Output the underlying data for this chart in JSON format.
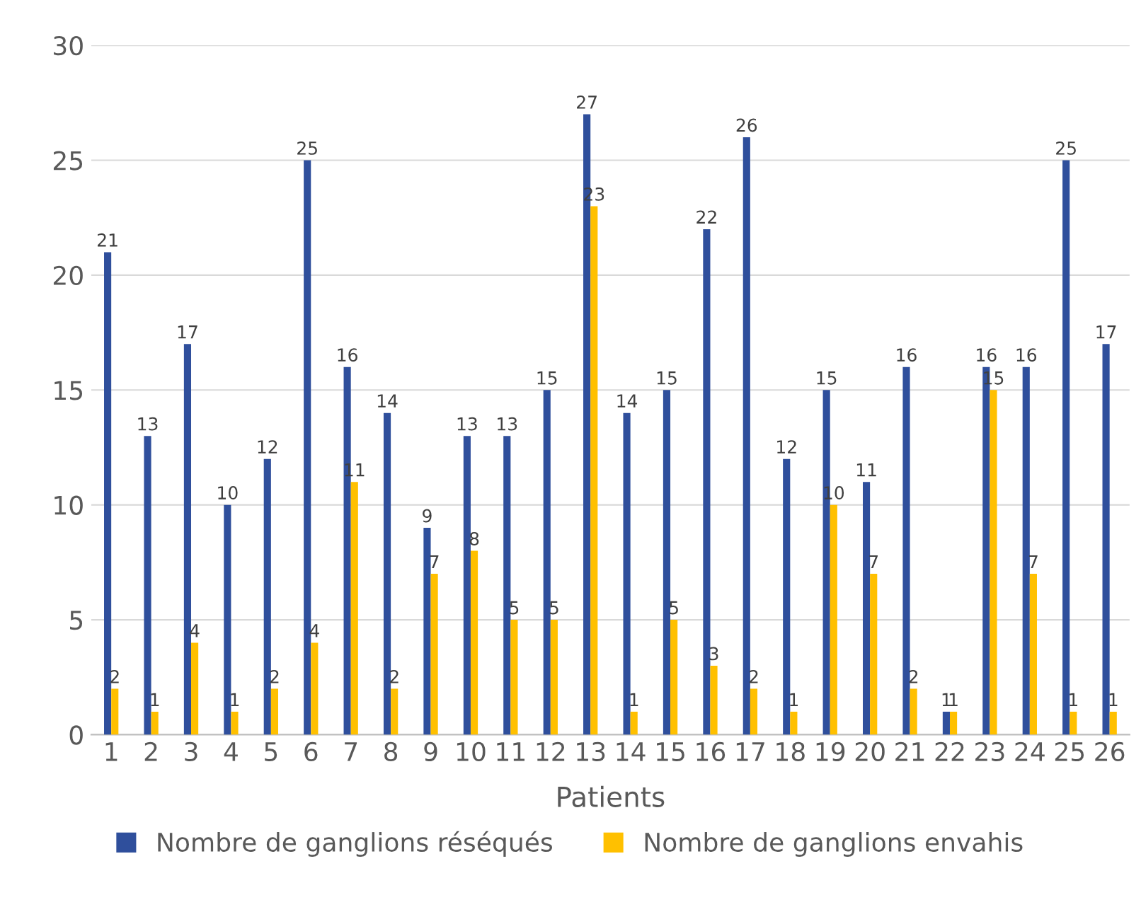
{
  "chart_data": {
    "type": "bar",
    "xlabel": "Patients",
    "categories": [
      "1",
      "2",
      "3",
      "4",
      "5",
      "6",
      "7",
      "8",
      "9",
      "10",
      "11",
      "12",
      "13",
      "14",
      "15",
      "16",
      "17",
      "18",
      "19",
      "20",
      "21",
      "22",
      "23",
      "24",
      "25",
      "26"
    ],
    "series": [
      {
        "name": "Nombre de ganglions réséqués",
        "color": "#2f4f9c",
        "values": [
          21,
          13,
          17,
          10,
          12,
          25,
          16,
          14,
          9,
          13,
          13,
          15,
          27,
          14,
          15,
          22,
          26,
          12,
          15,
          11,
          16,
          1,
          16,
          16,
          25,
          17
        ]
      },
      {
        "name": "Nombre de ganglions envahis",
        "color": "#ffc000",
        "values": [
          2,
          1,
          4,
          1,
          2,
          4,
          11,
          2,
          7,
          8,
          5,
          5,
          23,
          1,
          5,
          3,
          2,
          1,
          10,
          7,
          2,
          1,
          15,
          7,
          1,
          1
        ]
      }
    ],
    "ylim": [
      0,
      30
    ],
    "yticks": [
      0,
      5,
      10,
      15,
      20,
      25,
      30
    ],
    "grid": "y",
    "legend": "bottom",
    "data_labels": true
  }
}
